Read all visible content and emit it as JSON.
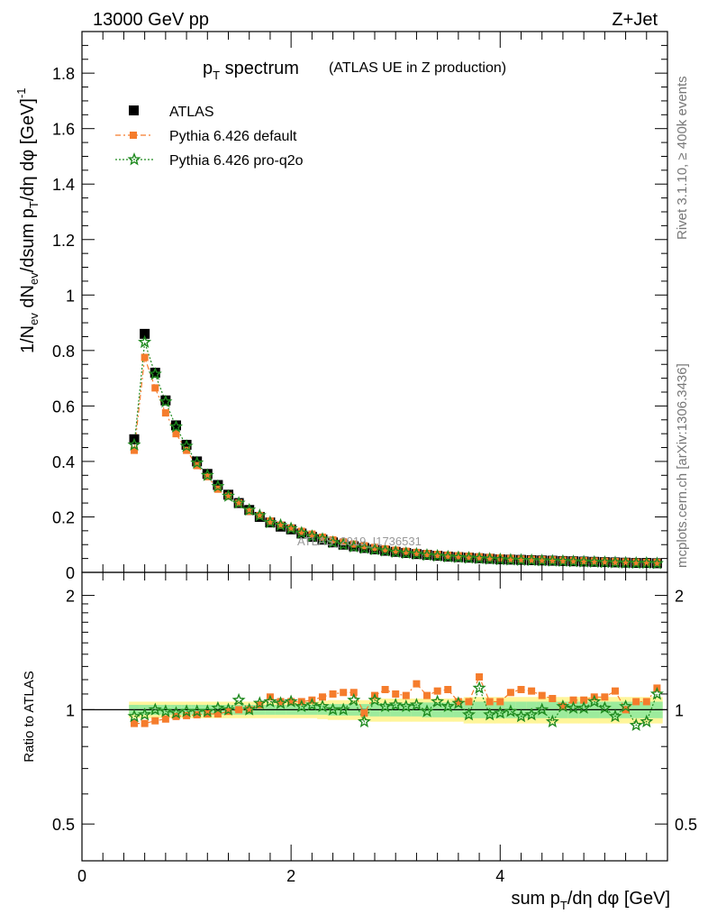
{
  "header": {
    "energy_label": "13000 GeV pp",
    "process_label": "Z+Jet"
  },
  "side_labels": {
    "rivet": "Rivet 3.1.10, ≥ 400k events",
    "mcplots": "mcplots.cern.ch [arXiv:1306.3436]"
  },
  "watermark": "ATLAS_2019_I1736531",
  "chart_data": [
    {
      "panel": "main",
      "type": "scatter",
      "title_main": "p",
      "title_sub": "T",
      "title_rest": " spectrum",
      "title_extra": "(ATLAS UE in Z production)",
      "ylabel": "1/N_ev dN_ev/dsum p_T/dη dφ [GeV]^-1",
      "xlim": [
        0,
        5.6
      ],
      "ylim": [
        0,
        1.95
      ],
      "yticks": [
        0,
        0.2,
        0.4,
        0.6,
        0.8,
        1,
        1.2,
        1.4,
        1.6,
        1.8
      ],
      "ytick_labels": [
        "0",
        "0.2",
        "0.4",
        "0.6",
        "0.8",
        "1",
        "1.2",
        "1.4",
        "1.6",
        "1.8"
      ],
      "x": [
        0.5,
        0.6,
        0.7,
        0.8,
        0.9,
        1.0,
        1.1,
        1.2,
        1.3,
        1.4,
        1.5,
        1.6,
        1.7,
        1.8,
        1.9,
        2.0,
        2.1,
        2.2,
        2.3,
        2.4,
        2.5,
        2.6,
        2.7,
        2.8,
        2.9,
        3.0,
        3.1,
        3.2,
        3.3,
        3.4,
        3.5,
        3.6,
        3.7,
        3.8,
        3.9,
        4.0,
        4.1,
        4.2,
        4.3,
        4.4,
        4.5,
        4.6,
        4.7,
        4.8,
        4.9,
        5.0,
        5.1,
        5.2,
        5.3,
        5.4,
        5.5
      ],
      "series": [
        {
          "name": "ATLAS",
          "values": [
            0.48,
            0.86,
            0.72,
            0.62,
            0.53,
            0.46,
            0.4,
            0.355,
            0.315,
            0.28,
            0.25,
            0.225,
            0.2,
            0.18,
            0.165,
            0.155,
            0.14,
            0.128,
            0.118,
            0.108,
            0.1,
            0.094,
            0.088,
            0.083,
            0.078,
            0.074,
            0.07,
            0.066,
            0.063,
            0.06,
            0.057,
            0.055,
            0.053,
            0.051,
            0.049,
            0.047,
            0.046,
            0.045,
            0.044,
            0.043,
            0.042,
            0.041,
            0.04,
            0.039,
            0.038,
            0.037,
            0.036,
            0.035,
            0.034,
            0.034,
            0.033
          ]
        },
        {
          "name": "Pythia 6.426 default",
          "values": [
            0.44,
            0.775,
            0.665,
            0.575,
            0.5,
            0.44,
            0.385,
            0.345,
            0.3,
            0.275,
            0.25,
            0.22,
            0.205,
            0.185,
            0.17,
            0.16,
            0.148,
            0.138,
            0.127,
            0.117,
            0.11,
            0.102,
            0.096,
            0.09,
            0.085,
            0.08,
            0.076,
            0.072,
            0.068,
            0.065,
            0.062,
            0.06,
            0.058,
            0.056,
            0.054,
            0.052,
            0.05,
            0.048,
            0.047,
            0.046,
            0.045,
            0.044,
            0.043,
            0.042,
            0.041,
            0.04,
            0.039,
            0.038,
            0.037,
            0.036,
            0.036
          ]
        },
        {
          "name": "Pythia 6.426 pro-q2o",
          "values": [
            0.46,
            0.83,
            0.715,
            0.615,
            0.525,
            0.455,
            0.395,
            0.35,
            0.31,
            0.275,
            0.25,
            0.225,
            0.205,
            0.18,
            0.17,
            0.158,
            0.142,
            0.13,
            0.12,
            0.108,
            0.1,
            0.092,
            0.087,
            0.082,
            0.078,
            0.073,
            0.069,
            0.066,
            0.062,
            0.059,
            0.056,
            0.054,
            0.052,
            0.05,
            0.048,
            0.046,
            0.045,
            0.044,
            0.043,
            0.042,
            0.041,
            0.04,
            0.039,
            0.038,
            0.037,
            0.036,
            0.035,
            0.034,
            0.033,
            0.033,
            0.032
          ]
        }
      ]
    },
    {
      "panel": "ratio",
      "type": "scatter",
      "ylabel": "Ratio to ATLAS",
      "xlabel": "sum p_T/dη dφ [GeV]",
      "xlim": [
        0,
        5.6
      ],
      "ylim": [
        0.4,
        2.3
      ],
      "log_y": true,
      "yticks": [
        0.5,
        1,
        2
      ],
      "ytick_labels": [
        "0.5",
        "1",
        "2"
      ],
      "xticks": [
        0,
        2,
        4
      ],
      "xtick_labels": [
        "0",
        "2",
        "4"
      ],
      "x": [
        0.5,
        0.6,
        0.7,
        0.8,
        0.9,
        1.0,
        1.1,
        1.2,
        1.3,
        1.4,
        1.5,
        1.6,
        1.7,
        1.8,
        1.9,
        2.0,
        2.1,
        2.2,
        2.3,
        2.4,
        2.5,
        2.6,
        2.7,
        2.8,
        2.9,
        3.0,
        3.1,
        3.2,
        3.3,
        3.4,
        3.5,
        3.6,
        3.7,
        3.8,
        3.9,
        4.0,
        4.1,
        4.2,
        4.3,
        4.4,
        4.5,
        4.6,
        4.7,
        4.8,
        4.9,
        5.0,
        5.1,
        5.2,
        5.3,
        5.4,
        5.5
      ],
      "band_inner": [
        0.03,
        0.03,
        0.03,
        0.03,
        0.03,
        0.03,
        0.03,
        0.03,
        0.03,
        0.03,
        0.03,
        0.03,
        0.03,
        0.03,
        0.03,
        0.03,
        0.03,
        0.03,
        0.03,
        0.035,
        0.035,
        0.035,
        0.035,
        0.04,
        0.04,
        0.04,
        0.04,
        0.04,
        0.045,
        0.045,
        0.045,
        0.045,
        0.05,
        0.05,
        0.05,
        0.05,
        0.05,
        0.05,
        0.05,
        0.05,
        0.05,
        0.05,
        0.05,
        0.05,
        0.05,
        0.05,
        0.05,
        0.05,
        0.05,
        0.05,
        0.05
      ],
      "band_outer": [
        0.05,
        0.05,
        0.05,
        0.05,
        0.05,
        0.05,
        0.05,
        0.05,
        0.05,
        0.05,
        0.05,
        0.05,
        0.05,
        0.05,
        0.05,
        0.05,
        0.05,
        0.05,
        0.055,
        0.06,
        0.06,
        0.06,
        0.06,
        0.07,
        0.07,
        0.07,
        0.07,
        0.07,
        0.07,
        0.07,
        0.07,
        0.07,
        0.08,
        0.08,
        0.08,
        0.08,
        0.08,
        0.08,
        0.08,
        0.08,
        0.08,
        0.08,
        0.08,
        0.08,
        0.08,
        0.08,
        0.08,
        0.08,
        0.08,
        0.08,
        0.08
      ],
      "series": [
        {
          "name": "Pythia 6.426 default",
          "values": [
            0.92,
            0.92,
            0.935,
            0.945,
            0.96,
            0.965,
            0.97,
            0.975,
            0.975,
            0.99,
            1.0,
            1.0,
            1.03,
            1.08,
            1.05,
            1.05,
            1.05,
            1.06,
            1.08,
            1.1,
            1.11,
            1.11,
            0.98,
            1.09,
            1.13,
            1.1,
            1.09,
            1.17,
            1.09,
            1.12,
            1.13,
            1.05,
            1.05,
            1.22,
            1.05,
            1.05,
            1.11,
            1.13,
            1.12,
            1.09,
            1.07,
            1.02,
            1.06,
            1.06,
            1.08,
            1.08,
            1.12,
            1.0,
            1.05,
            1.05,
            1.14
          ]
        },
        {
          "name": "Pythia 6.426 pro-q2o",
          "values": [
            0.96,
            0.97,
            1.0,
            0.99,
            0.98,
            0.99,
            0.99,
            0.99,
            1.01,
            1.0,
            1.06,
            1.0,
            1.04,
            1.05,
            1.04,
            1.05,
            1.02,
            1.03,
            1.02,
            1.0,
            1.0,
            1.06,
            0.93,
            1.06,
            1.02,
            1.03,
            1.02,
            1.03,
            0.99,
            1.05,
            1.02,
            1.04,
            0.97,
            1.14,
            0.97,
            0.98,
            0.99,
            0.96,
            0.97,
            1.0,
            0.93,
            1.02,
            1.01,
            1.01,
            1.05,
            1.01,
            0.96,
            1.02,
            0.91,
            0.93,
            1.1
          ]
        }
      ]
    }
  ],
  "legend": {
    "items": [
      "ATLAS",
      "Pythia 6.426 default",
      "Pythia 6.426 pro-q2o"
    ]
  },
  "colors": {
    "atlas": "#000000",
    "default": "#f57c2c",
    "proq2o": "#1f8a1f",
    "band_inner": "#9ceb9c",
    "band_outer": "#fff59a"
  }
}
